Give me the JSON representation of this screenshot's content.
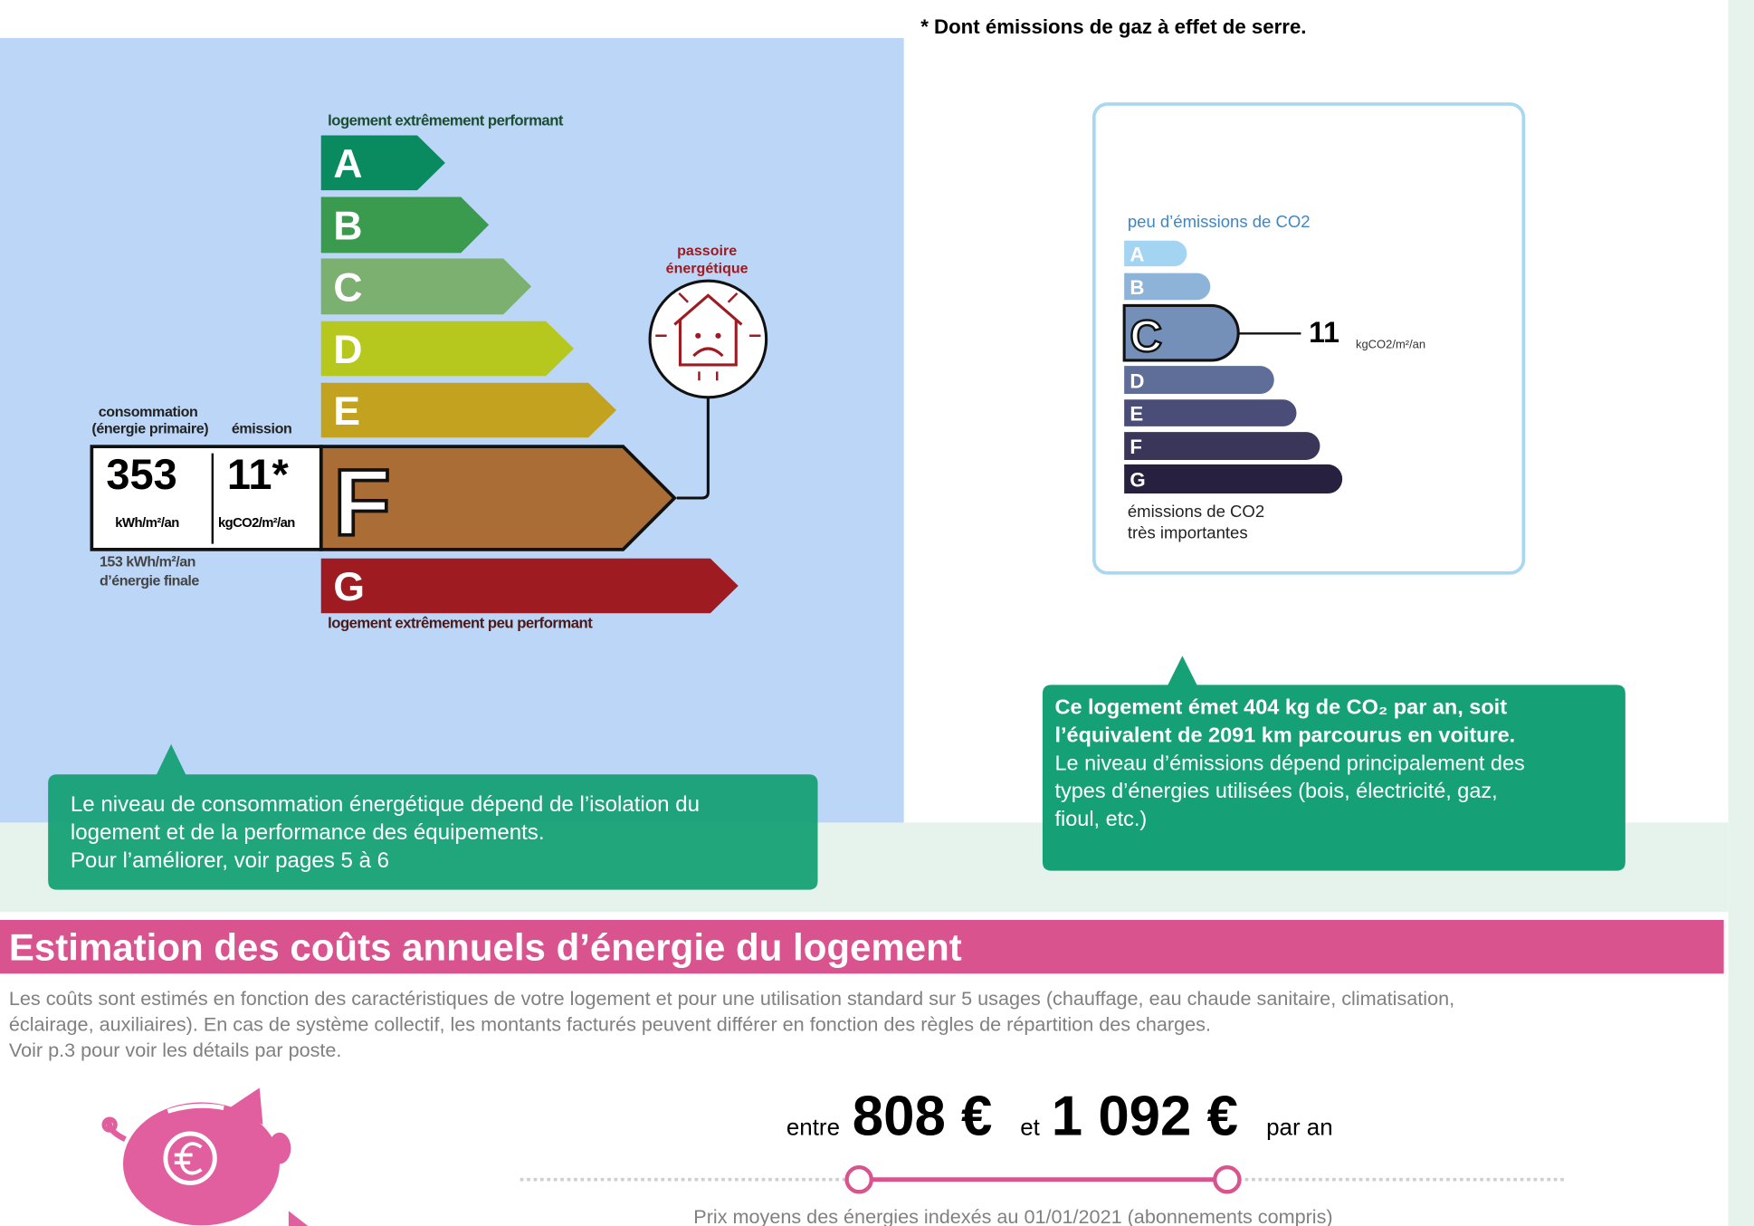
{
  "footnote": "* Dont émissions de gaz à effet de serre.",
  "energy_label": {
    "top_caption": "logement extrêmement performant",
    "bottom_caption": "logement extrêmement peu performant",
    "classes": [
      "A",
      "B",
      "C",
      "D",
      "E",
      "F",
      "G"
    ],
    "consumption_heading": [
      "consommation",
      "(énergie primaire)"
    ],
    "emission_heading": "émission",
    "consumption": "353",
    "consumption_unit": "kWh/m²/an",
    "emission": "11*",
    "emission_unit": "kgCO2/m²/an",
    "final_energy": [
      "153 kWh/m²/an",
      "d’énergie finale"
    ],
    "badge": [
      "passoire",
      "énergétique"
    ]
  },
  "energy_note": [
    "Le niveau de consommation énergétique dépend de l’isolation du",
    "logement et de la performance des équipements.",
    "Pour l’améliorer, voir pages 5 à 6"
  ],
  "co2_label": {
    "top_caption": "peu d’émissions de CO2",
    "classes": [
      "A",
      "B",
      "C",
      "D",
      "E",
      "F",
      "G"
    ],
    "value": "11",
    "unit": "kgCO2/m²/an",
    "bottom_caption": [
      "émissions de CO2",
      "très importantes"
    ]
  },
  "co2_note": {
    "bold": [
      "Ce logement émet 404  kg de CO₂ par an, soit",
      "l’équivalent de 2091 km parcourus en voiture."
    ],
    "text": [
      "Le niveau d’émissions dépend principalement des",
      "types d’énergies utilisées (bois, électricité, gaz,",
      "fioul, etc.)"
    ]
  },
  "costs": {
    "title": "Estimation des coûts annuels d’énergie du logement",
    "description": [
      "Les coûts sont estimés en fonction des caractéristiques de votre logement et pour une utilisation standard sur 5 usages (chauffage, eau chaude sanitaire, climatisation,",
      "éclairage, auxiliaires). En cas de système collectif, les montants facturés peuvent différer en fonction des règles de répartition des charges.",
      "Voir p.3 pour voir les détails par poste."
    ],
    "from_prefix": "entre",
    "low": "808 €",
    "and": "et",
    "high": "1 092 €",
    "suffix": "par an",
    "note": "Prix moyens des énergies indexés au 01/01/2021  (abonnements compris)"
  }
}
